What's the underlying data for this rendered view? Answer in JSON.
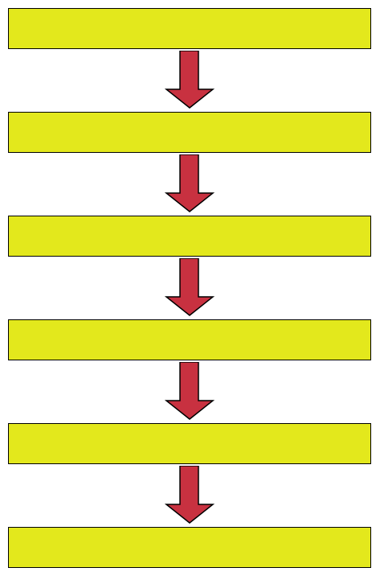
{
  "diagram": {
    "boxes": [
      {
        "text": ""
      },
      {
        "text": ""
      },
      {
        "text": ""
      },
      {
        "text": ""
      },
      {
        "text": ""
      },
      {
        "text": ""
      }
    ],
    "arrow_count": 5
  },
  "colors": {
    "box_fill": "#e3e81c",
    "box_border": "#000000",
    "arrow_fill": "#c83140",
    "arrow_stroke": "#000000",
    "background": "#ffffff"
  },
  "icons": {
    "arrow": "down-arrow-icon"
  }
}
